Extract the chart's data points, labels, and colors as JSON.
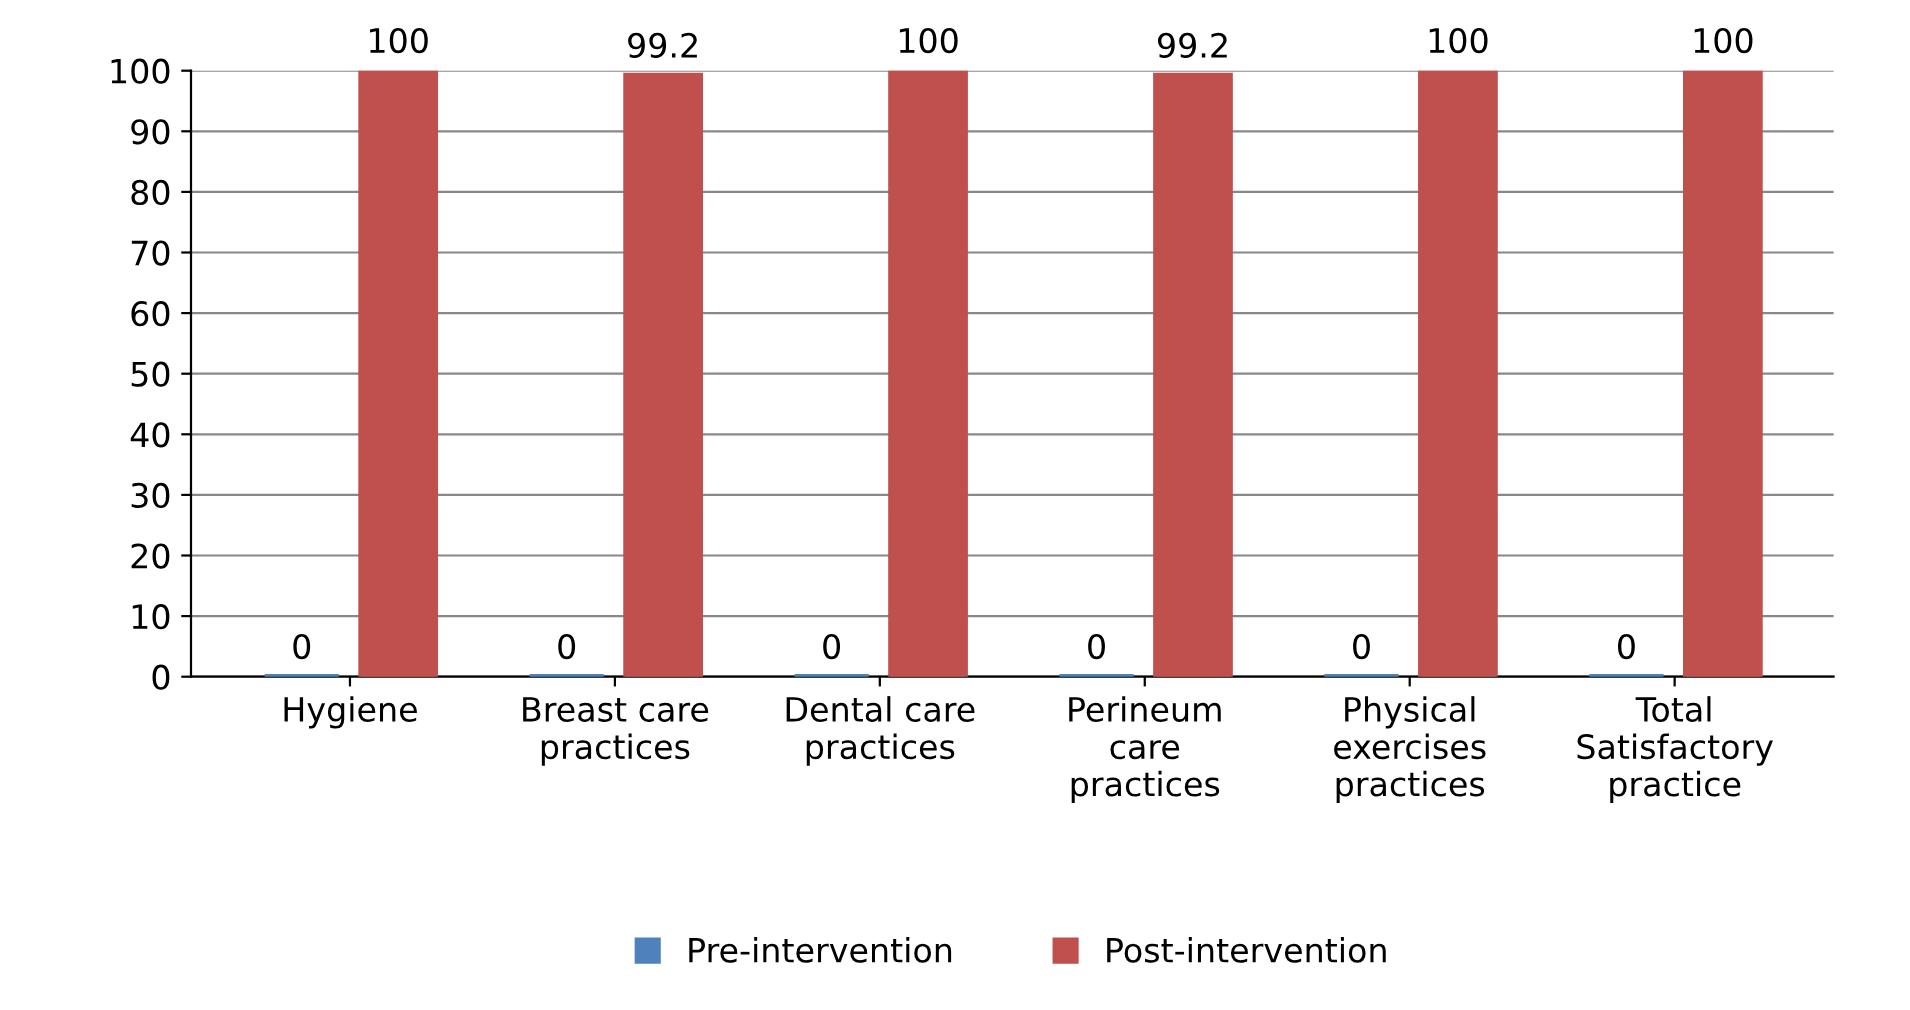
{
  "chart_data": {
    "type": "bar",
    "categories": [
      "Hygiene",
      "Breast care\npractices",
      "Dental care\npractices",
      "Perineum\ncare\npractices",
      "Physical\nexercises\npractices",
      "Total\nSatisfactory\npractice"
    ],
    "series": [
      {
        "name": "Pre-intervention",
        "color": "#4f81bd",
        "values": [
          0,
          0,
          0,
          0,
          0,
          0
        ]
      },
      {
        "name": "Post-intervention",
        "color": "#c0504d",
        "values": [
          100,
          99.2,
          100,
          99.2,
          100,
          100
        ]
      }
    ],
    "ylim": [
      0,
      100
    ],
    "yticks": [
      0,
      10,
      20,
      30,
      40,
      50,
      60,
      70,
      80,
      90,
      100
    ],
    "grid": "y",
    "legend": "bottom",
    "data_labels": true
  }
}
